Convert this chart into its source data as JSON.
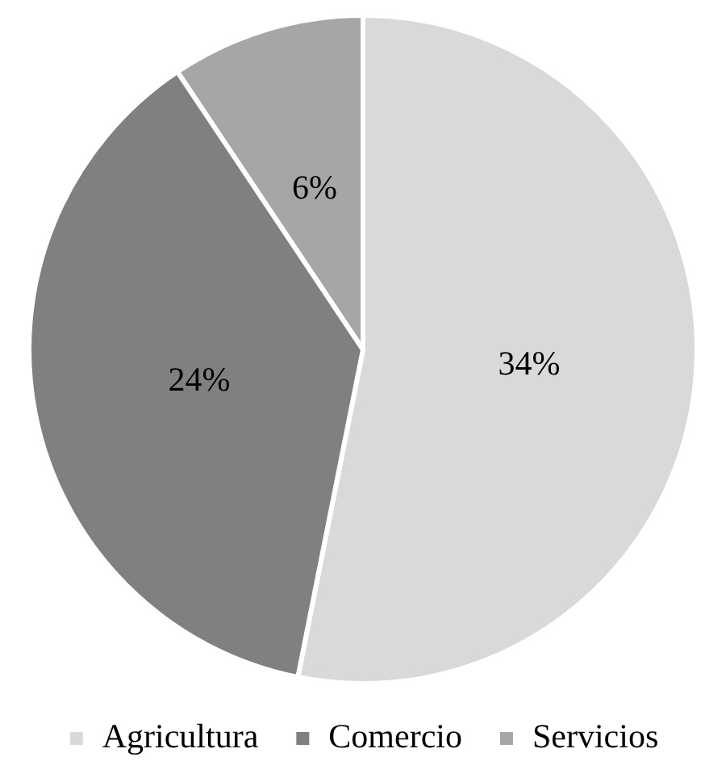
{
  "chart_data": {
    "type": "pie",
    "categories": [
      "Agricultura",
      "Comercio",
      "Servicios"
    ],
    "values": [
      34,
      24,
      6
    ],
    "colors": [
      "#d9d9d9",
      "#808080",
      "#a6a6a6"
    ],
    "value_labels": [
      "34%",
      "24%",
      "6%"
    ],
    "legend": "bottom"
  }
}
